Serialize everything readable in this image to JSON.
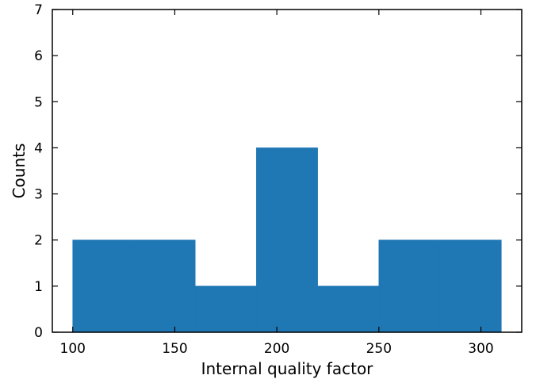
{
  "chart_data": {
    "type": "bar",
    "subtype": "histogram",
    "title": "",
    "xlabel": "Internal quality factor",
    "ylabel": "Counts",
    "xlim": [
      90,
      320
    ],
    "ylim": [
      0,
      7
    ],
    "xticks": [
      100,
      150,
      200,
      250,
      300
    ],
    "yticks": [
      0,
      1,
      2,
      3,
      4,
      5,
      6,
      7
    ],
    "bins": [
      {
        "x0": 100,
        "x1": 130,
        "count": 2
      },
      {
        "x0": 130,
        "x1": 160,
        "count": 2
      },
      {
        "x0": 160,
        "x1": 190,
        "count": 1
      },
      {
        "x0": 190,
        "x1": 220,
        "count": 4
      },
      {
        "x0": 220,
        "x1": 250,
        "count": 1
      },
      {
        "x0": 250,
        "x1": 280,
        "count": 2
      },
      {
        "x0": 280,
        "x1": 310,
        "count": 2
      }
    ],
    "bar_color": "#1f77b4",
    "grid": false,
    "ticks_direction": "in",
    "ticks_on_all_sides": true
  }
}
